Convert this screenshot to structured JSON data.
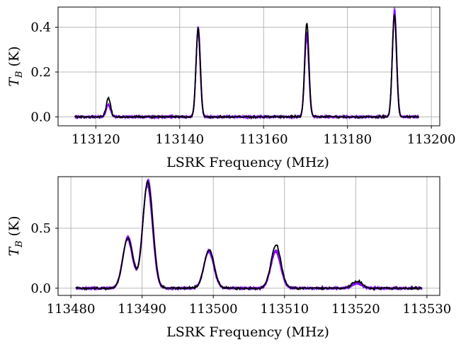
{
  "chart_data": [
    {
      "type": "line",
      "xlabel": "LSRK Frequency (MHz)",
      "ylabel_main": "T",
      "ylabel_sub": "B",
      "ylabel_unit": " (K)",
      "xlim": [
        113111,
        113202
      ],
      "ylim": [
        -0.04,
        0.49
      ],
      "xticks": [
        113120,
        113140,
        113160,
        113180,
        113200
      ],
      "yticks": [
        0.0,
        0.2,
        0.4
      ],
      "ytick_labels": [
        "0.0",
        "0.2",
        "0.4"
      ],
      "grid": true,
      "x_range": [
        113115,
        113197
      ],
      "peaks": [
        {
          "center": 113123.0,
          "purple": 0.055,
          "black": 0.085
        },
        {
          "center": 113144.4,
          "purple": 0.39,
          "black": 0.4
        },
        {
          "center": 113170.3,
          "purple": 0.37,
          "black": 0.42
        },
        {
          "center": 113191.2,
          "purple": 0.47,
          "black": 0.46
        }
      ],
      "peak_width_mhz": 0.5,
      "series": [
        {
          "color": "#7f00ff",
          "count": 6
        },
        {
          "color": "#000000",
          "count": 1
        }
      ]
    },
    {
      "type": "line",
      "xlabel": "LSRK Frequency (MHz)",
      "ylabel_main": "T",
      "ylabel_sub": "B",
      "ylabel_unit": " (K)",
      "xlim": [
        113478.2,
        113531.8
      ],
      "ylim": [
        -0.06,
        0.93
      ],
      "xticks": [
        113480,
        113490,
        113500,
        113510,
        113520,
        113530
      ],
      "yticks": [
        0.0,
        0.5
      ],
      "ytick_labels": [
        "0.0",
        "0.5"
      ],
      "grid": true,
      "x_range": [
        113480.7,
        113529.3
      ],
      "peaks": [
        {
          "center": 113488.0,
          "purple": 0.42,
          "black": 0.42
        },
        {
          "center": 113490.8,
          "purple": 0.88,
          "black": 0.89
        },
        {
          "center": 113499.4,
          "purple": 0.31,
          "black": 0.32
        },
        {
          "center": 113508.8,
          "purple": 0.31,
          "black": 0.36
        },
        {
          "center": 113520.2,
          "purple": 0.04,
          "black": 0.06
        }
      ],
      "peak_width_mhz": 0.7,
      "series": [
        {
          "color": "#7f00ff",
          "count": 6
        },
        {
          "color": "#000000",
          "count": 1
        }
      ]
    }
  ]
}
